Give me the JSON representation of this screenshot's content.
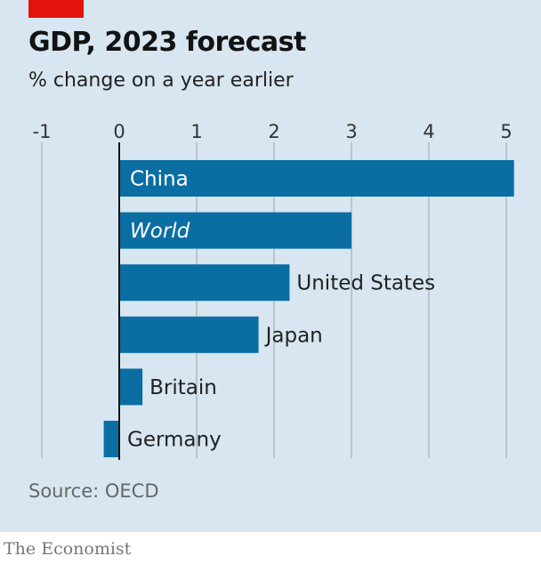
{
  "chart_data": {
    "type": "bar",
    "orientation": "horizontal",
    "title": "GDP, 2023 forecast",
    "subtitle": "% change on a year earlier",
    "source": "Source: OECD",
    "categories": [
      "China",
      "World",
      "United States",
      "Japan",
      "Britain",
      "Germany"
    ],
    "values": [
      5.1,
      3.0,
      2.2,
      1.8,
      0.3,
      -0.2
    ],
    "italic_categories": [
      "World"
    ],
    "xlim": [
      -1,
      5.1
    ],
    "xticks": [
      -1,
      0,
      1,
      2,
      3,
      4,
      5
    ],
    "xtick_labels": [
      "-1",
      "0",
      "1",
      "2",
      "3",
      "4",
      "5"
    ],
    "grid": true,
    "axis_position": "top",
    "colors": {
      "bar": "#0b6ea3",
      "background": "#d7e6f0",
      "accent": "#e3120b",
      "grid": "#b9c5cd"
    }
  },
  "brand": "The Economist"
}
